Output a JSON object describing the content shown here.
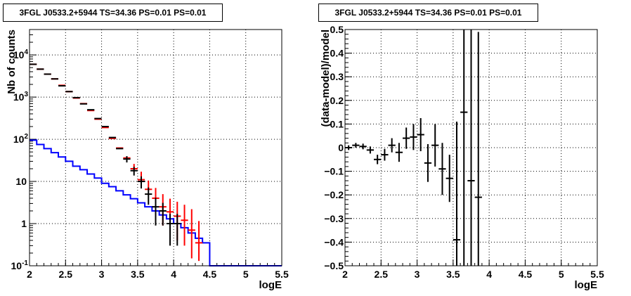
{
  "chart_data": [
    {
      "type": "histogram",
      "title": "3FGL J0533.2+5944 TS=34.36 PS=0.01 PS=0.01",
      "xlabel": "logE",
      "ylabel": "Nb of counts",
      "xlim": [
        2,
        5.5
      ],
      "ylim": [
        0.1,
        40000
      ],
      "yscale": "log",
      "grid": true,
      "x_ticks": [
        "2",
        "2.5",
        "3",
        "3.5",
        "4",
        "4.5",
        "5",
        "5.5"
      ],
      "y_ticks": [
        {
          "base": "10",
          "exp": "-1"
        },
        {
          "base": "1",
          "exp": ""
        },
        {
          "base": "10",
          "exp": ""
        },
        {
          "base": "10",
          "exp": "2"
        },
        {
          "base": "10",
          "exp": "3"
        },
        {
          "base": "10",
          "exp": "4"
        }
      ],
      "series": [
        {
          "kind": "model-step",
          "color": "#0000ff",
          "x": [
            2.0,
            2.1,
            2.2,
            2.3,
            2.4,
            2.5,
            2.6,
            2.7,
            2.8,
            2.9,
            3.0,
            3.1,
            3.2,
            3.3,
            3.4,
            3.5,
            3.6,
            3.7,
            3.8,
            3.9,
            4.0,
            4.1,
            4.2,
            4.3,
            4.4,
            4.5,
            4.6,
            4.7,
            4.8,
            4.9,
            5.0,
            5.1,
            5.2,
            5.3,
            5.4
          ],
          "values": [
            95,
            75,
            60,
            48,
            38,
            30,
            23,
            19,
            15,
            12,
            9,
            7.5,
            6,
            4.8,
            3.9,
            3.1,
            2.5,
            2.0,
            1.6,
            1.3,
            1.0,
            0.8,
            0.6,
            0.45,
            0.35,
            0.1,
            0.1,
            0.1,
            0.1,
            0.1,
            0.1,
            0.1,
            0.1,
            0.1,
            0.1
          ]
        },
        {
          "kind": "model-total",
          "color": "#ff0000",
          "x": [
            2.05,
            2.15,
            2.25,
            2.35,
            2.45,
            2.55,
            2.65,
            2.75,
            2.85,
            2.95,
            3.05,
            3.15,
            3.25,
            3.35,
            3.45,
            3.55,
            3.65,
            3.75,
            3.85,
            3.95,
            4.05,
            4.15,
            4.25,
            4.35
          ],
          "values": [
            6000,
            4600,
            3500,
            2700,
            1900,
            1350,
            950,
            700,
            480,
            300,
            190,
            105,
            62,
            36,
            20,
            11,
            6.5,
            4,
            2.5,
            1.9,
            1.5,
            1.2,
            0.7,
            0.35
          ],
          "yerr_low": [
            0,
            0,
            0,
            0,
            0,
            0,
            0,
            0,
            0,
            0,
            0,
            0,
            0,
            0,
            0,
            0,
            0,
            0,
            1.6,
            1.3,
            1.1,
            0.9,
            0.55,
            0.22
          ],
          "yerr_high": [
            0,
            0,
            0,
            0,
            0,
            0,
            0,
            0,
            0,
            0,
            0,
            0,
            0,
            0,
            6,
            6,
            4,
            3,
            2.5,
            2,
            1.8,
            1.6,
            1.5,
            0.8
          ]
        },
        {
          "kind": "data",
          "color": "#000000",
          "x": [
            2.05,
            2.15,
            2.25,
            2.35,
            2.45,
            2.55,
            2.65,
            2.75,
            2.85,
            2.95,
            3.05,
            3.15,
            3.25,
            3.35,
            3.45,
            3.55,
            3.65,
            3.75,
            3.85,
            3.95,
            4.05
          ],
          "values": [
            6000,
            4600,
            3500,
            2700,
            1850,
            1350,
            970,
            690,
            500,
            310,
            200,
            110,
            60,
            34,
            18,
            10,
            5,
            2.5,
            2,
            1,
            1
          ],
          "yerr_low": [
            0,
            0,
            0,
            0,
            0,
            0,
            0,
            0,
            0,
            0,
            0,
            0,
            0,
            5.8,
            4.2,
            3.2,
            2.2,
            1.6,
            1.1,
            0.7,
            0.7
          ],
          "yerr_high": [
            0,
            0,
            0,
            0,
            0,
            0,
            0,
            0,
            0,
            0,
            0,
            0,
            0,
            5.8,
            4.2,
            3.2,
            2.2,
            1.6,
            1.1,
            0.7,
            0.7
          ]
        }
      ]
    },
    {
      "type": "scatter",
      "title": "3FGL J0533.2+5944 TS=34.36 PS=0.01 PS=0.01",
      "xlabel": "logE",
      "ylabel": "(data-model)/model",
      "xlim": [
        2,
        5.5
      ],
      "ylim": [
        -0.5,
        0.5
      ],
      "grid": true,
      "x_ticks": [
        "2",
        "2.5",
        "3",
        "3.5",
        "4",
        "4.5",
        "5",
        "5.5"
      ],
      "y_ticks": [
        "-0.5",
        "-0.4",
        "-0.3",
        "-0.2",
        "-0.1",
        "0",
        "0.1",
        "0.2",
        "0.3",
        "0.4",
        "0.5"
      ],
      "series": [
        {
          "color": "#000000",
          "x": [
            2.05,
            2.15,
            2.25,
            2.35,
            2.45,
            2.55,
            2.65,
            2.75,
            2.85,
            2.95,
            3.05,
            3.15,
            3.25,
            3.35,
            3.45,
            3.55,
            3.65,
            3.75,
            3.85
          ],
          "values": [
            0.0,
            0.01,
            0.005,
            -0.01,
            -0.05,
            -0.03,
            0.01,
            -0.02,
            0.04,
            0.045,
            0.055,
            -0.065,
            0.01,
            -0.09,
            -0.13,
            -0.39,
            0.15,
            -0.14,
            -0.21
          ],
          "yerr_low": [
            0.01,
            0.01,
            0.012,
            0.015,
            0.02,
            0.025,
            0.03,
            0.04,
            0.045,
            0.055,
            0.07,
            0.08,
            0.09,
            0.11,
            0.1,
            0.5,
            0.7,
            0.7,
            0.7
          ],
          "yerr_high": [
            0.01,
            0.01,
            0.012,
            0.015,
            0.02,
            0.025,
            0.03,
            0.04,
            0.045,
            0.055,
            0.07,
            0.08,
            0.09,
            0.11,
            0.1,
            0.5,
            0.7,
            0.7,
            0.7
          ]
        }
      ]
    }
  ]
}
